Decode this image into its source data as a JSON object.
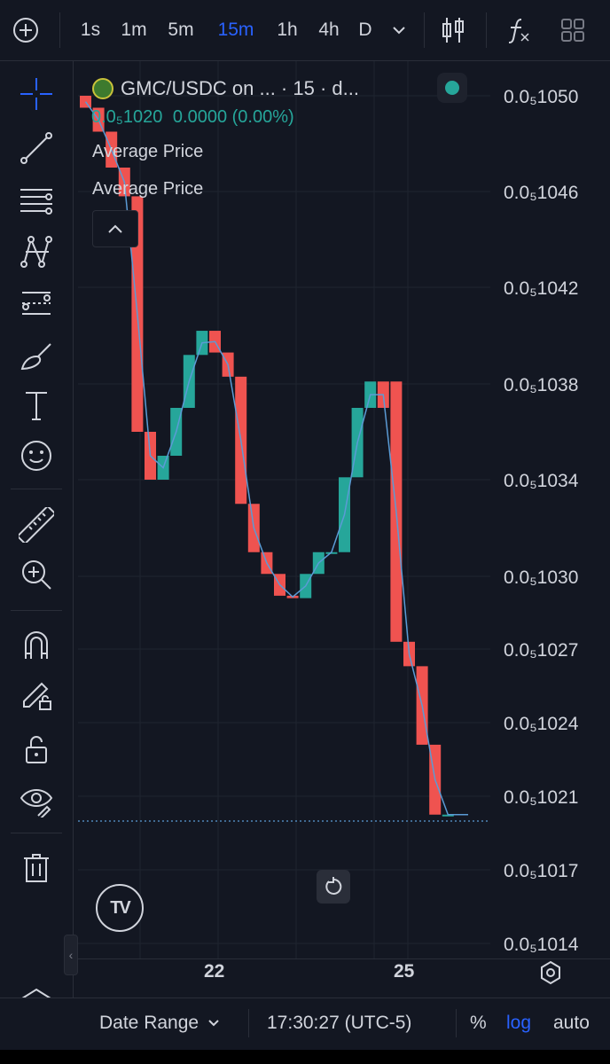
{
  "header": {
    "intervals": [
      {
        "label": "1s",
        "active": false
      },
      {
        "label": "1m",
        "active": false
      },
      {
        "label": "5m",
        "active": false
      },
      {
        "label": "15m",
        "active": true
      },
      {
        "label": "1h",
        "active": false
      },
      {
        "label": "4h",
        "active": false
      },
      {
        "label": "D",
        "active": false
      }
    ],
    "icons": [
      "add-symbol-icon",
      "chevron-down-icon",
      "candles-icon",
      "indicators-icon",
      "layout-icon"
    ]
  },
  "left_toolbar": {
    "icons": [
      "crosshair-icon",
      "trend-line-icon",
      "fib-retracement-icon",
      "pattern-icon",
      "forecast-icon",
      "brush-icon",
      "text-icon",
      "emoji-icon",
      "ruler-icon",
      "zoom-in-icon",
      "magnet-icon",
      "lock-drawing-icon",
      "lock-icon",
      "eye-icon",
      "trash-icon",
      "layers-icon"
    ]
  },
  "legend": {
    "symbol": "GMC/USDC on ... · 15 · d...",
    "price": "0.0₅1020",
    "change": "0.0000 (0.00%)",
    "indicators": [
      "Average Price",
      "Average Price"
    ]
  },
  "colors": {
    "background": "#131722",
    "up": "#26a69a",
    "down": "#ef5350",
    "line": "#5b9bd5",
    "accent": "#2962ff"
  },
  "chart_data": {
    "type": "candlestick",
    "y_axis_labels": [
      "0.0₅1050",
      "0.0₅1046",
      "0.0₅1042",
      "0.0₅1038",
      "0.0₅1034",
      "0.0₅1030",
      "0.0₅1027",
      "0.0₅1024",
      "0.0₅1021",
      "0.0₅1017",
      "0.0₅1014"
    ],
    "y_axis_values": [
      1050,
      1046,
      1042,
      1038,
      1034,
      1030,
      1027,
      1024,
      1021,
      1017,
      1014
    ],
    "y_scale": "log",
    "x_tick_labels": [
      "22",
      "25"
    ],
    "last_price": 1020,
    "candles": [
      {
        "open": 1050,
        "close": 1049.5
      },
      {
        "open": 1049.5,
        "close": 1048.5
      },
      {
        "open": 1048.5,
        "close": 1047
      },
      {
        "open": 1047,
        "close": 1045.8
      },
      {
        "open": 1045.8,
        "close": 1036
      },
      {
        "open": 1036,
        "close": 1034
      },
      {
        "open": 1034,
        "close": 1035
      },
      {
        "open": 1035,
        "close": 1037
      },
      {
        "open": 1037,
        "close": 1039.2
      },
      {
        "open": 1039.2,
        "close": 1040.2
      },
      {
        "open": 1040.2,
        "close": 1039.3
      },
      {
        "open": 1039.3,
        "close": 1038.3
      },
      {
        "open": 1038.3,
        "close": 1033
      },
      {
        "open": 1033,
        "close": 1031
      },
      {
        "open": 1031,
        "close": 1030.1
      },
      {
        "open": 1030.1,
        "close": 1029.2
      },
      {
        "open": 1029.2,
        "close": 1029.1
      },
      {
        "open": 1029.1,
        "close": 1030.1
      },
      {
        "open": 1030.1,
        "close": 1031
      },
      {
        "open": 1031,
        "close": 1031
      },
      {
        "open": 1031,
        "close": 1034.1
      },
      {
        "open": 1034.1,
        "close": 1037
      },
      {
        "open": 1037,
        "close": 1038.1
      },
      {
        "open": 1038.1,
        "close": 1037
      },
      {
        "open": 1038.1,
        "close": 1027.3
      },
      {
        "open": 1027.3,
        "close": 1026.3
      },
      {
        "open": 1026.3,
        "close": 1023.1
      },
      {
        "open": 1023.1,
        "close": 1020
      },
      {
        "open": 1020,
        "close": 1020
      }
    ]
  },
  "footer": {
    "date_range": "Date Range",
    "time": "17:30:27 (UTC-5)",
    "percent": "%",
    "log": "log",
    "auto": "auto"
  }
}
